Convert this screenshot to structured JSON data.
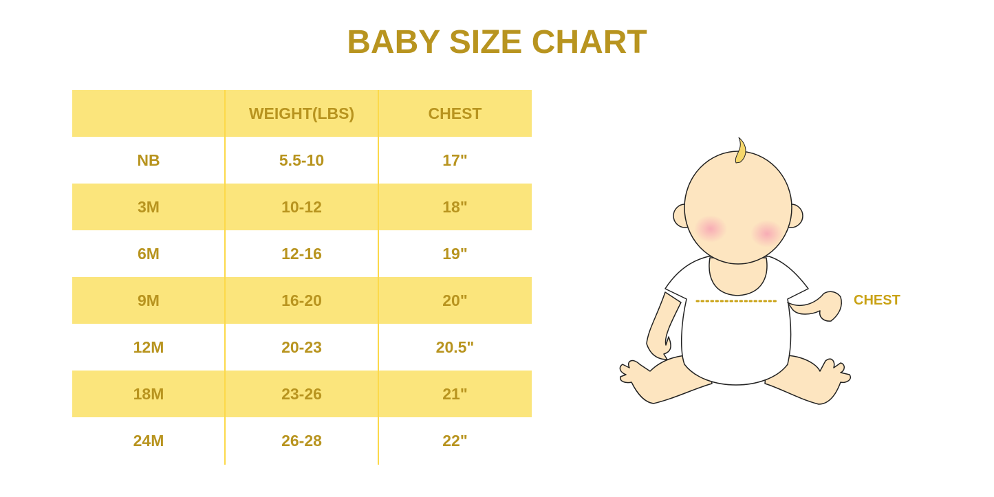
{
  "title": "BABY SIZE CHART",
  "table": {
    "headers": [
      "",
      "WEIGHT(LBS)",
      "CHEST"
    ],
    "rows": [
      [
        "NB",
        "5.5-10",
        "17\""
      ],
      [
        "3M",
        "10-12",
        "18\""
      ],
      [
        "6M",
        "12-16",
        "19\""
      ],
      [
        "9M",
        "16-20",
        "20\""
      ],
      [
        "12M",
        "20-23",
        "20.5\""
      ],
      [
        "18M",
        "23-26",
        "21\""
      ],
      [
        "24M",
        "26-28",
        "22\""
      ]
    ]
  },
  "illustration": {
    "chest_label": "CHEST"
  },
  "colors": {
    "text": "#b8941f",
    "band": "#fbe57c",
    "divider": "#fcd94a",
    "skin": "#fde5c0"
  }
}
